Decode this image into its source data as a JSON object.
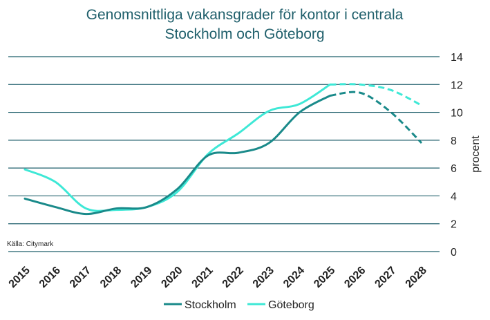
{
  "chart_data": {
    "type": "line",
    "title_lines": [
      "Genomsnittliga vakansgrader för kontor i centrala",
      "Stockholm och Göteborg"
    ],
    "ylabel": "procent",
    "source": "Källa: Citymark",
    "ylim": [
      0,
      14
    ],
    "yticks": [
      0,
      2,
      4,
      6,
      8,
      10,
      12,
      14
    ],
    "y_axis_position": "right",
    "grid": true,
    "legend": "bottom",
    "x": [
      2015,
      2016,
      2017,
      2018,
      2019,
      2020,
      2021,
      2022,
      2023,
      2024,
      2025,
      2026,
      2027,
      2028
    ],
    "xtick_labels": [
      "2015",
      "2016",
      "2017",
      "2018",
      "2019",
      "2020",
      "2021",
      "2022",
      "2023",
      "2024",
      "2025",
      "2026",
      "2027",
      "2028"
    ],
    "forecast_from": 2025,
    "series": [
      {
        "name": "Stockholm",
        "color": "#1a8a8a",
        "values": [
          3.8,
          3.2,
          2.7,
          3.1,
          3.2,
          4.5,
          6.9,
          7.1,
          7.8,
          10.0,
          11.2,
          11.4,
          10.0,
          7.8
        ]
      },
      {
        "name": "Göteborg",
        "color": "#3ee8d6",
        "values": [
          5.9,
          5.0,
          3.1,
          3.0,
          3.2,
          4.3,
          7.0,
          8.5,
          10.1,
          10.6,
          12.0,
          12.0,
          11.6,
          10.5
        ]
      }
    ]
  }
}
